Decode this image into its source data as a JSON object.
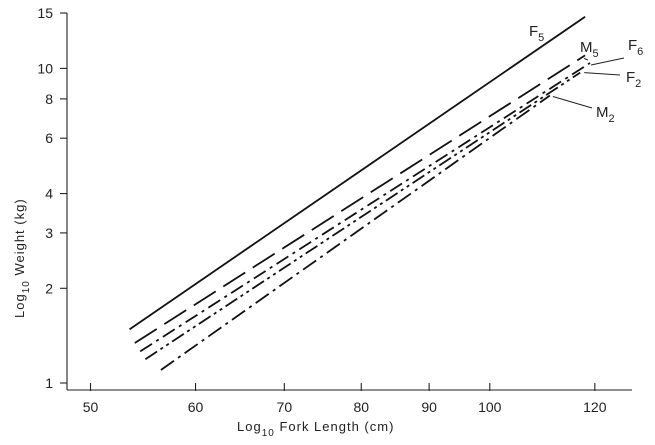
{
  "chart_data": {
    "type": "line",
    "title": "",
    "xlabel": {
      "pre": "Log",
      "sub": "10",
      "post": " Fork Length (cm)"
    },
    "ylabel": {
      "pre": "Log",
      "sub": "10",
      "post": " Weight (kg)"
    },
    "xscale": "log",
    "yscale": "log",
    "xlim": [
      48,
      128
    ],
    "ylim": [
      0.95,
      15
    ],
    "grid": false,
    "legend": "inline labels at line ends",
    "x_ticks": [
      50,
      60,
      70,
      80,
      90,
      100,
      120
    ],
    "x_tick_labels": [
      "50",
      "60",
      "70",
      "80",
      "90",
      "100",
      "120"
    ],
    "y_ticks": [
      1,
      2,
      3,
      4,
      6,
      8,
      10,
      15
    ],
    "y_tick_labels": [
      "1",
      "2",
      "3",
      "4",
      "6",
      "8",
      "10",
      "15"
    ],
    "series": [
      {
        "name": "F5",
        "base": "F",
        "sub": "5",
        "dash": "",
        "x": [
          53.5,
          118
        ],
        "y": [
          1.48,
          14.6
        ]
      },
      {
        "name": "M5",
        "base": "M",
        "sub": "5",
        "dash": "26,9",
        "x": [
          54,
          118
        ],
        "y": [
          1.34,
          11.0
        ]
      },
      {
        "name": "F6",
        "base": "F",
        "sub": "6",
        "dash": "14,5,3,5",
        "x": [
          54.5,
          119
        ],
        "y": [
          1.26,
          10.4
        ]
      },
      {
        "name": "F2",
        "base": "F",
        "sub": "2",
        "dash": "14,4,3,4,3,4",
        "x": [
          55,
          117
        ],
        "y": [
          1.19,
          9.7
        ]
      },
      {
        "name": "M2",
        "base": "M",
        "sub": "2",
        "dash": "16,5,3,5",
        "x": [
          56.5,
          111
        ],
        "y": [
          1.1,
          8.2
        ]
      }
    ]
  }
}
